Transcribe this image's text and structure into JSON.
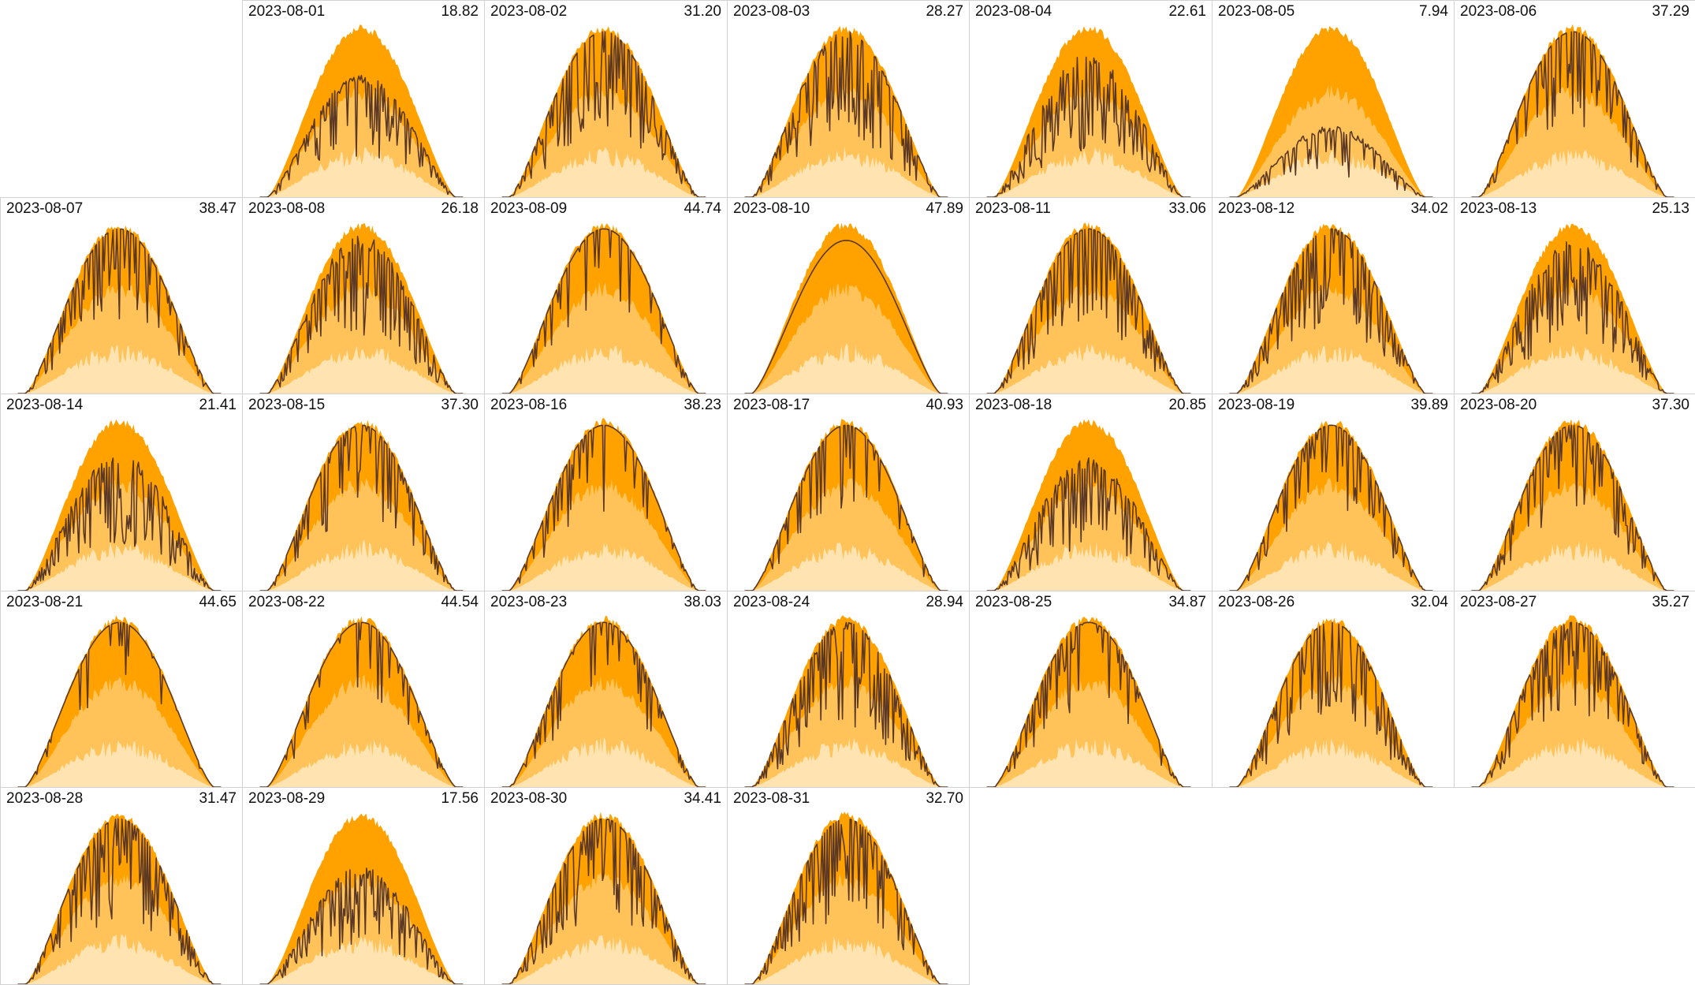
{
  "chart_data": {
    "type": "area",
    "layout": "calendar-month-grid",
    "month": "2023-08",
    "columns": 7,
    "first_weekday_offset": 1,
    "title": "",
    "xlabel": "",
    "ylabel": "",
    "grid": false,
    "colors": {
      "band_outer": "#ffa200",
      "band_middle": "#ffc359",
      "band_inner": "#ffe3b0",
      "actual_line": "#5a3825",
      "cell_border": "#d2d2d2"
    },
    "series": [
      {
        "name": "",
        "role": "band-outer"
      },
      {
        "name": "",
        "role": "band-middle"
      },
      {
        "name": "",
        "role": "band-inner"
      },
      {
        "name": "",
        "role": "actual"
      }
    ],
    "days": [
      {
        "date": "2023-08-01",
        "total": "18.82",
        "ratio": 0.41,
        "vol": 0.35,
        "seed": 1
      },
      {
        "date": "2023-08-02",
        "total": "31.20",
        "ratio": 0.68,
        "vol": 0.55,
        "seed": 2
      },
      {
        "date": "2023-08-03",
        "total": "28.27",
        "ratio": 0.62,
        "vol": 0.5,
        "seed": 3
      },
      {
        "date": "2023-08-04",
        "total": "22.61",
        "ratio": 0.5,
        "vol": 0.6,
        "seed": 4
      },
      {
        "date": "2023-08-05",
        "total": "7.94",
        "ratio": 0.17,
        "vol": 0.3,
        "seed": 5
      },
      {
        "date": "2023-08-06",
        "total": "37.29",
        "ratio": 0.8,
        "vol": 0.45,
        "seed": 6
      },
      {
        "date": "2023-08-07",
        "total": "38.47",
        "ratio": 0.82,
        "vol": 0.45,
        "seed": 7
      },
      {
        "date": "2023-08-08",
        "total": "26.18",
        "ratio": 0.57,
        "vol": 0.4,
        "seed": 8
      },
      {
        "date": "2023-08-09",
        "total": "44.74",
        "ratio": 0.94,
        "vol": 0.2,
        "seed": 9
      },
      {
        "date": "2023-08-10",
        "total": "47.89",
        "ratio": 0.99,
        "vol": 0.04,
        "seed": 10
      },
      {
        "date": "2023-08-11",
        "total": "33.06",
        "ratio": 0.72,
        "vol": 0.5,
        "seed": 11
      },
      {
        "date": "2023-08-12",
        "total": "34.02",
        "ratio": 0.74,
        "vol": 0.55,
        "seed": 12
      },
      {
        "date": "2023-08-13",
        "total": "25.13",
        "ratio": 0.55,
        "vol": 0.55,
        "seed": 13
      },
      {
        "date": "2023-08-14",
        "total": "21.41",
        "ratio": 0.47,
        "vol": 0.55,
        "seed": 14
      },
      {
        "date": "2023-08-15",
        "total": "37.30",
        "ratio": 0.82,
        "vol": 0.45,
        "seed": 15
      },
      {
        "date": "2023-08-16",
        "total": "38.23",
        "ratio": 0.82,
        "vol": 0.3,
        "seed": 16
      },
      {
        "date": "2023-08-17",
        "total": "40.93",
        "ratio": 0.86,
        "vol": 0.35,
        "seed": 17
      },
      {
        "date": "2023-08-18",
        "total": "20.85",
        "ratio": 0.45,
        "vol": 0.45,
        "seed": 18
      },
      {
        "date": "2023-08-19",
        "total": "39.89",
        "ratio": 0.85,
        "vol": 0.4,
        "seed": 19
      },
      {
        "date": "2023-08-20",
        "total": "37.30",
        "ratio": 0.8,
        "vol": 0.45,
        "seed": 20
      },
      {
        "date": "2023-08-21",
        "total": "44.65",
        "ratio": 0.94,
        "vol": 0.2,
        "seed": 21
      },
      {
        "date": "2023-08-22",
        "total": "44.54",
        "ratio": 0.93,
        "vol": 0.25,
        "seed": 22
      },
      {
        "date": "2023-08-23",
        "total": "38.03",
        "ratio": 0.82,
        "vol": 0.3,
        "seed": 23
      },
      {
        "date": "2023-08-24",
        "total": "28.94",
        "ratio": 0.63,
        "vol": 0.55,
        "seed": 24
      },
      {
        "date": "2023-08-25",
        "total": "34.87",
        "ratio": 0.75,
        "vol": 0.4,
        "seed": 25
      },
      {
        "date": "2023-08-26",
        "total": "32.04",
        "ratio": 0.7,
        "vol": 0.55,
        "seed": 26
      },
      {
        "date": "2023-08-27",
        "total": "35.27",
        "ratio": 0.76,
        "vol": 0.5,
        "seed": 27
      },
      {
        "date": "2023-08-28",
        "total": "31.47",
        "ratio": 0.68,
        "vol": 0.55,
        "seed": 28
      },
      {
        "date": "2023-08-29",
        "total": "17.56",
        "ratio": 0.38,
        "vol": 0.45,
        "seed": 29
      },
      {
        "date": "2023-08-30",
        "total": "34.41",
        "ratio": 0.74,
        "vol": 0.5,
        "seed": 30
      },
      {
        "date": "2023-08-31",
        "total": "32.70",
        "ratio": 0.71,
        "vol": 0.5,
        "seed": 31
      }
    ]
  }
}
